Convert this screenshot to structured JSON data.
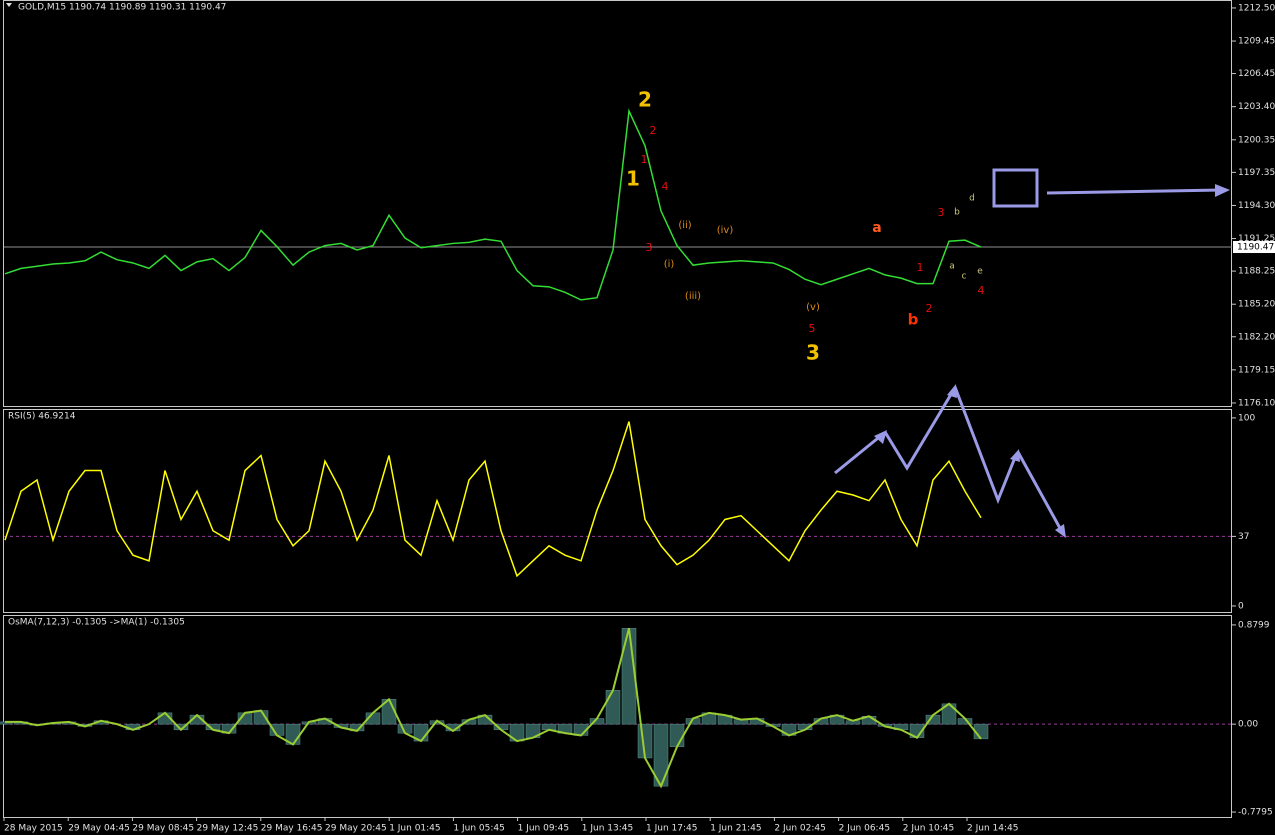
{
  "chart_data": [
    {
      "type": "line",
      "title": "GOLD,M15  1190.74 1190.89 1190.31 1190.47",
      "color": "#33dd33",
      "values": [
        1188.0,
        1188.5,
        1188.7,
        1188.9,
        1189.0,
        1189.2,
        1190.0,
        1189.3,
        1189.0,
        1188.5,
        1189.7,
        1188.3,
        1189.1,
        1189.4,
        1188.3,
        1189.5,
        1192.0,
        1190.5,
        1188.8,
        1190.0,
        1190.6,
        1190.8,
        1190.2,
        1190.6,
        1193.4,
        1191.3,
        1190.4,
        1190.6,
        1190.8,
        1190.9,
        1191.2,
        1191.0,
        1188.3,
        1186.9,
        1186.8,
        1186.3,
        1185.6,
        1185.8,
        1190.2,
        1203.0,
        1199.8,
        1193.8,
        1190.6,
        1188.8,
        1189.0,
        1189.1,
        1189.2,
        1189.1,
        1189.0,
        1188.4,
        1187.5,
        1187.0,
        1187.5,
        1188.0,
        1188.5,
        1187.9,
        1187.6,
        1187.1,
        1187.1,
        1191.0,
        1191.1,
        1190.47
      ],
      "ylim": [
        1175.82,
        1213.14
      ],
      "yticks": [
        {
          "value": 1212.5,
          "label": "1212.50"
        },
        1209.45,
        1206.45,
        {
          "value": 1203.4,
          "label": "1203.40"
        },
        1200.35,
        1197.35,
        {
          "value": 1194.3,
          "label": "1194.30"
        },
        1191.25,
        1188.25,
        {
          "value": 1185.2,
          "label": "1185.20"
        },
        {
          "value": 1182.2,
          "label": "1182.20"
        },
        1179.15,
        {
          "value": 1176.1,
          "label": "1176.10"
        }
      ],
      "last_price": 1190.47,
      "annotations": [
        {
          "text": "2",
          "color": "#f2c200"
        },
        {
          "text": "1",
          "color": "#f2c200"
        },
        {
          "text": "3",
          "color": "#f2c200"
        },
        {
          "text": "2",
          "color": "#e01010"
        },
        {
          "text": "1",
          "color": "#e01010"
        },
        {
          "text": "4",
          "color": "#e01010"
        },
        {
          "text": "3",
          "color": "#e01010"
        },
        {
          "text": "5",
          "color": "#e01010"
        },
        {
          "text": "(ii)",
          "color": "#d98a1a"
        },
        {
          "text": "(iv)",
          "color": "#d98a1a"
        },
        {
          "text": "(i)",
          "color": "#d98a1a"
        },
        {
          "text": "(iii)",
          "color": "#d98a1a"
        },
        {
          "text": "(v)",
          "color": "#d98a1a"
        },
        {
          "text": "a",
          "color": "#ff5a1f"
        },
        {
          "text": "b",
          "color": "#ff3300"
        },
        {
          "text": "1",
          "color": "#e01010"
        },
        {
          "text": "2",
          "color": "#e01010"
        },
        {
          "text": "3",
          "color": "#e01010"
        },
        {
          "text": "4",
          "color": "#e01010"
        },
        {
          "text": "b",
          "color": "#c8c878"
        },
        {
          "text": "d",
          "color": "#c8c878"
        },
        {
          "text": "a",
          "color": "#c8c878"
        },
        {
          "text": "c",
          "color": "#c8c878"
        },
        {
          "text": "e",
          "color": "#c8c878"
        }
      ]
    },
    {
      "type": "line",
      "title": "RSI(5) 46.9214",
      "color": "#ffff00",
      "values": [
        35,
        61,
        67,
        35,
        61,
        72,
        72,
        40,
        27,
        24,
        72,
        46,
        61,
        40,
        35,
        72,
        80,
        46,
        32,
        40,
        77,
        61,
        35,
        51,
        80,
        35,
        27,
        56,
        35,
        67,
        77,
        40,
        16,
        24,
        32,
        27,
        24,
        51,
        72,
        98,
        46,
        32,
        22,
        27,
        35,
        46,
        48,
        40,
        32,
        24,
        40,
        51,
        61,
        59,
        56,
        67,
        46,
        32,
        67,
        77,
        61,
        46.9214
      ],
      "ylim": [
        -3.2,
        104.2
      ],
      "yticks": [
        100,
        37,
        0
      ],
      "level": 37,
      "level_color": "#9a3a9a"
    },
    {
      "type": "osma",
      "title": "OsMA(7,12,3) -0.1305  ->MA(1) -0.1305",
      "color": "#2f5a55",
      "signal_color": "#9acd32",
      "values": [
        0.02,
        0.02,
        -0.01,
        0.01,
        0.02,
        -0.02,
        0.03,
        0.0,
        -0.05,
        0.0,
        0.1,
        -0.05,
        0.08,
        -0.05,
        -0.08,
        0.1,
        0.12,
        -0.1,
        -0.18,
        0.02,
        0.05,
        -0.03,
        -0.06,
        0.1,
        0.22,
        -0.08,
        -0.15,
        0.03,
        -0.06,
        0.04,
        0.08,
        -0.05,
        -0.15,
        -0.12,
        -0.05,
        -0.08,
        -0.1,
        0.05,
        0.3,
        0.85,
        -0.3,
        -0.55,
        -0.2,
        0.05,
        0.1,
        0.08,
        0.04,
        0.05,
        -0.02,
        -0.1,
        -0.05,
        0.05,
        0.08,
        0.03,
        0.07,
        -0.02,
        -0.05,
        -0.12,
        0.08,
        0.18,
        0.05,
        -0.1305
      ],
      "signal_values": [
        0.02,
        0.02,
        -0.01,
        0.01,
        0.02,
        -0.02,
        0.03,
        0.0,
        -0.05,
        0.0,
        0.1,
        -0.05,
        0.08,
        -0.05,
        -0.08,
        0.1,
        0.12,
        -0.1,
        -0.18,
        0.02,
        0.05,
        -0.03,
        -0.06,
        0.1,
        0.22,
        -0.08,
        -0.15,
        0.03,
        -0.06,
        0.04,
        0.08,
        -0.05,
        -0.15,
        -0.12,
        -0.05,
        -0.08,
        -0.1,
        0.05,
        0.3,
        0.85,
        -0.3,
        -0.55,
        -0.2,
        0.05,
        0.1,
        0.08,
        0.04,
        0.05,
        -0.02,
        -0.1,
        -0.05,
        0.05,
        0.08,
        0.03,
        0.07,
        -0.02,
        -0.05,
        -0.12,
        0.08,
        0.18,
        0.05,
        -0.1305
      ],
      "ylim": [
        -0.8235,
        0.959
      ],
      "yticks": [
        0.8799,
        {
          "value": 0,
          "label": "0.00"
        },
        -0.7795
      ],
      "level": 0,
      "level_color": "#9a3a9a"
    }
  ],
  "time_axis": {
    "labels": [
      "28 May 2015",
      "29 May 04:45",
      "29 May 08:45",
      "29 May 12:45",
      "29 May 16:45",
      "29 May 20:45",
      "1 Jun 01:45",
      "1 Jun 05:45",
      "1 Jun 09:45",
      "1 Jun 13:45",
      "1 Jun 17:45",
      "1 Jun 21:45",
      "2 Jun 02:45",
      "2 Jun 06:45",
      "2 Jun 10:45",
      "2 Jun 14:45"
    ]
  }
}
